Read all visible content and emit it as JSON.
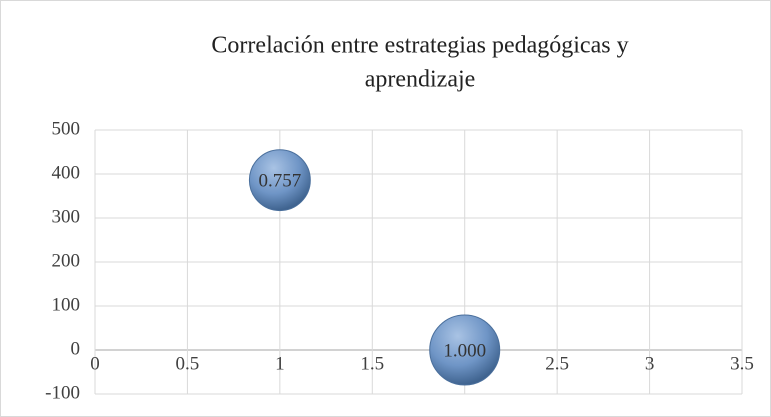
{
  "chart_data": {
    "type": "bubble",
    "title_lines": [
      "Correlación entre estrategias pedagógicas y",
      "aprendizaje"
    ],
    "x": [
      1,
      2
    ],
    "values": [
      386,
      0
    ],
    "sizes": [
      0.757,
      1
    ],
    "size_labels": [
      "0.757",
      "1.000"
    ],
    "color": "#5b86bd",
    "xlim": [
      0,
      3.5
    ],
    "xticks": [
      0,
      0.5,
      1,
      1.5,
      2,
      2.5,
      3,
      3.5
    ],
    "ylim": [
      -100,
      500
    ],
    "yticks": [
      -100,
      0,
      100,
      200,
      300,
      400,
      500
    ],
    "grid": true
  }
}
